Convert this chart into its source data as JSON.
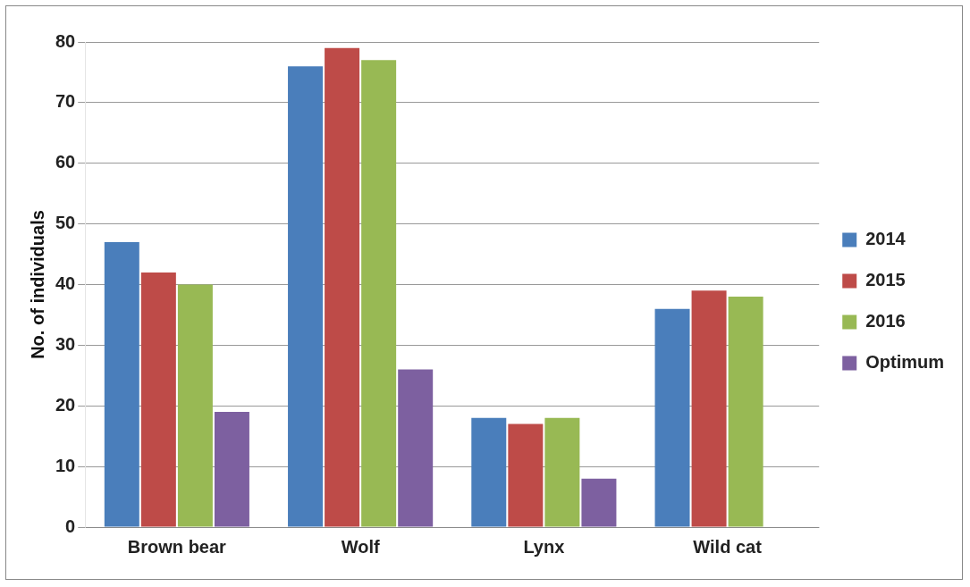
{
  "chart_data": {
    "type": "bar",
    "ylabel": "No. of individuals",
    "categories": [
      "Brown bear",
      "Wolf",
      "Lynx",
      "Wild cat"
    ],
    "series": [
      {
        "name": "2014",
        "color": "#4a7ebb",
        "values": [
          47,
          76,
          18,
          36
        ]
      },
      {
        "name": "2015",
        "color": "#be4b48",
        "values": [
          42,
          79,
          17,
          39
        ]
      },
      {
        "name": "2016",
        "color": "#98b954",
        "values": [
          40,
          77,
          18,
          38
        ]
      },
      {
        "name": "Optimum",
        "color": "#7d60a0",
        "values": [
          19,
          26,
          8,
          0
        ]
      }
    ],
    "ylim": [
      0,
      80
    ],
    "yticks": [
      0,
      10,
      20,
      30,
      40,
      50,
      60,
      70,
      80
    ],
    "grid": "y",
    "legend": "right"
  }
}
